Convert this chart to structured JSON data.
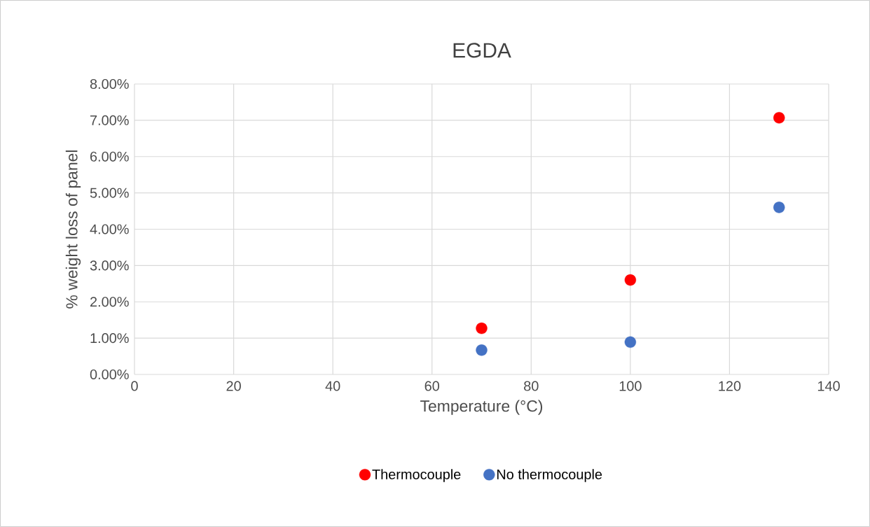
{
  "chart_data": {
    "type": "scatter",
    "title": "EGDA",
    "xlabel": "Temperature (°C)",
    "ylabel": "% weight loss of panel",
    "x": [
      70,
      100,
      130
    ],
    "series": [
      {
        "name": "Thermocouple",
        "color": "#ff0000",
        "values": [
          1.27,
          2.6,
          7.07
        ]
      },
      {
        "name": "No thermocouple",
        "color": "#4472c4",
        "values": [
          0.67,
          0.89,
          4.6
        ]
      }
    ],
    "xlim": [
      0,
      140
    ],
    "xticks": [
      0,
      20,
      40,
      60,
      80,
      100,
      120,
      140
    ],
    "ylim": [
      0,
      8
    ],
    "yticks": [
      {
        "value": 0,
        "label": "0.00%"
      },
      {
        "value": 1,
        "label": "1.00%"
      },
      {
        "value": 2,
        "label": "2.00%"
      },
      {
        "value": 3,
        "label": "3.00%"
      },
      {
        "value": 4,
        "label": "4.00%"
      },
      {
        "value": 5,
        "label": "5.00%"
      },
      {
        "value": 6,
        "label": "6.00%"
      },
      {
        "value": 7,
        "label": "7.00%"
      },
      {
        "value": 8,
        "label": "8.00%"
      }
    ],
    "grid": true,
    "legend": "bottom",
    "marker": "circle"
  }
}
